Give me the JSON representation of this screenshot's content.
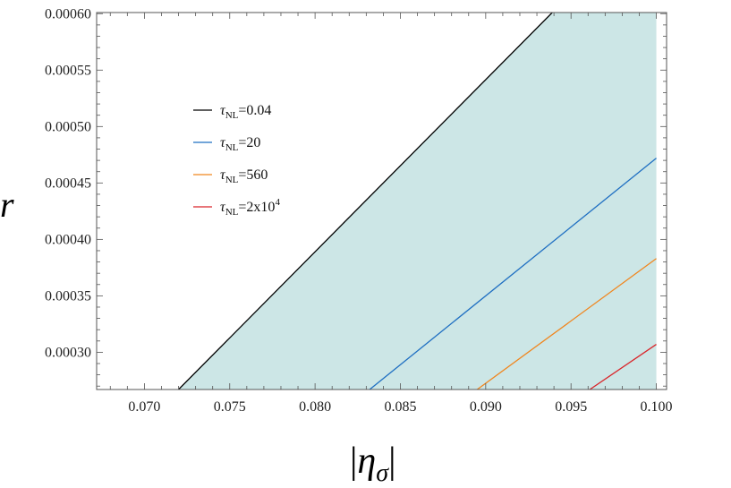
{
  "chart_data": {
    "type": "line",
    "xlabel": "|ησ|",
    "ylabel": "r",
    "xlim": [
      0.0672,
      0.1006
    ],
    "ylim": [
      0.000267,
      0.000601
    ],
    "x_ticks": [
      0.07,
      0.075,
      0.08,
      0.085,
      0.09,
      0.095,
      0.1
    ],
    "x_tick_labels": [
      "0.070",
      "0.075",
      "0.080",
      "0.085",
      "0.090",
      "0.095",
      "0.100"
    ],
    "y_ticks": [
      0.0003,
      0.00035,
      0.0004,
      0.00045,
      0.0005,
      0.00055,
      0.0006
    ],
    "y_tick_labels": [
      "0.00030",
      "0.00035",
      "0.00040",
      "0.00045",
      "0.00050",
      "0.00055",
      "0.00060"
    ],
    "grid": false,
    "legend_position": "upper-left",
    "fill_color": "#cce6e6",
    "shaded_region": "area below and right of the τNL=0.04 line, up to x = 0.100",
    "series": [
      {
        "name": "τNL=0.04",
        "name_parts": {
          "tau": "τ",
          "sub": "NL",
          "value": "=0.04",
          "sup": ""
        },
        "color": "#000000",
        "x": [
          0.072,
          0.0939
        ],
        "y": [
          0.000267,
          0.000601
        ]
      },
      {
        "name": "τNL=20",
        "name_parts": {
          "tau": "τ",
          "sub": "NL",
          "value": "=20",
          "sup": ""
        },
        "color": "#1f6fc2",
        "x": [
          0.0832,
          0.1
        ],
        "y": [
          0.000267,
          0.000472
        ]
      },
      {
        "name": "τNL=560",
        "name_parts": {
          "tau": "τ",
          "sub": "NL",
          "value": "=560",
          "sup": ""
        },
        "color": "#f0861e",
        "x": [
          0.0895,
          0.1
        ],
        "y": [
          0.000267,
          0.000383
        ]
      },
      {
        "name": "τNL=2x10^4",
        "name_parts": {
          "tau": "τ",
          "sub": "NL",
          "value": "=2x10",
          "sup": "4"
        },
        "color": "#d9252a",
        "x": [
          0.0961,
          0.1
        ],
        "y": [
          0.000267,
          0.000307
        ]
      }
    ]
  }
}
